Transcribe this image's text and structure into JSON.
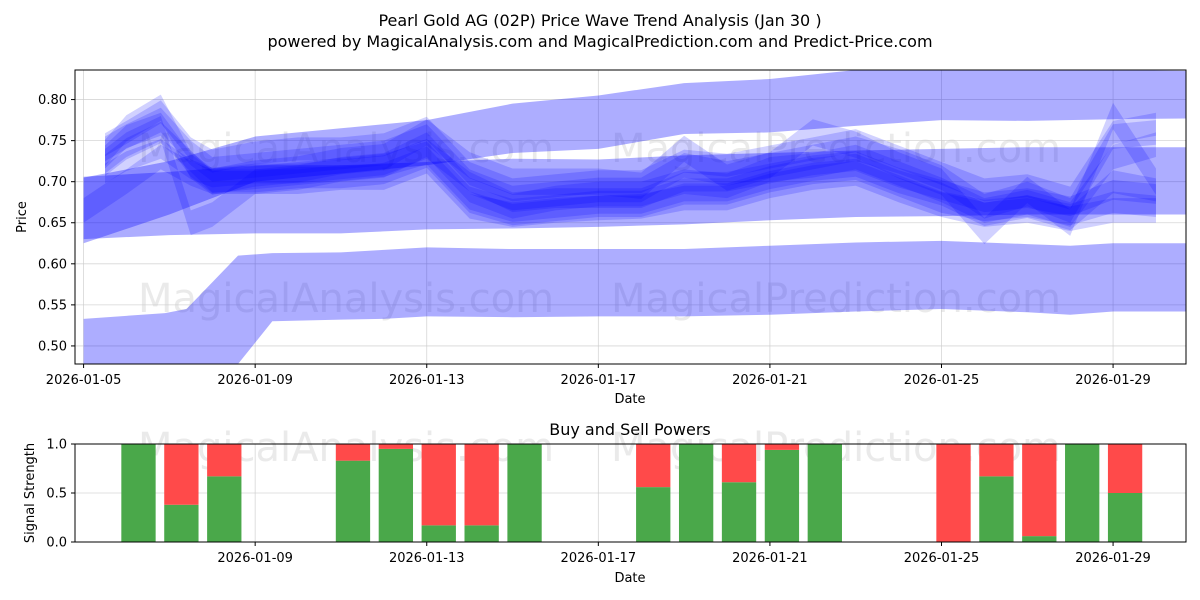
{
  "header": {
    "title": "Pearl Gold AG (02P) Price Wave Trend Analysis (Jan 30 )",
    "subtitle": "powered by MagicalAnalysis.com and MagicalPrediction.com and Predict-Price.com"
  },
  "watermarks": [
    "MagicalAnalysis.com",
    "MagicalPrediction.com"
  ],
  "colors": {
    "band": "#0000ff",
    "buy": "#4aa84a",
    "sell": "#ff4a4a",
    "axis": "#000000",
    "grid": "#cccccc",
    "watermark": "#d9d9d9"
  },
  "chart_data": [
    {
      "type": "area",
      "title": "",
      "xlabel": "Date",
      "ylabel": "Price",
      "x_range": [
        "2026-01-05",
        "2026-01-31"
      ],
      "xlim_days": [
        -0.2,
        25.7
      ],
      "ylim": [
        0.478,
        0.836
      ],
      "yticks": [
        0.5,
        0.55,
        0.6,
        0.65,
        0.7,
        0.75,
        0.8
      ],
      "ytick_labels": [
        "0.50",
        "0.55",
        "0.60",
        "0.65",
        "0.70",
        "0.75",
        "0.80"
      ],
      "xticks": [
        0,
        4,
        8,
        12,
        16,
        20,
        24
      ],
      "xtick_labels": [
        "2026-01-05",
        "2026-01-09",
        "2026-01-13",
        "2026-01-17",
        "2026-01-21",
        "2026-01-25",
        "2026-01-29"
      ],
      "grid": true,
      "series": [
        {
          "name": "band-upper",
          "opacity": 0.32,
          "x": [
            0,
            2,
            4,
            6,
            8,
            10,
            12,
            14,
            16,
            18,
            20,
            22,
            24,
            25.7
          ],
          "upper": [
            0.705,
            0.725,
            0.755,
            0.765,
            0.775,
            0.795,
            0.805,
            0.82,
            0.825,
            0.838,
            0.84,
            0.84,
            0.838,
            0.835
          ],
          "lower": [
            0.625,
            0.66,
            0.7,
            0.71,
            0.72,
            0.735,
            0.74,
            0.758,
            0.76,
            0.768,
            0.775,
            0.774,
            0.776,
            0.777
          ]
        },
        {
          "name": "band-middle",
          "opacity": 0.32,
          "x": [
            0,
            2,
            4,
            6,
            8,
            10,
            12,
            14,
            16,
            18,
            20,
            22,
            24,
            25.7
          ],
          "upper": [
            0.706,
            0.712,
            0.72,
            0.72,
            0.724,
            0.728,
            0.727,
            0.732,
            0.735,
            0.738,
            0.74,
            0.742,
            0.742,
            0.742
          ],
          "lower": [
            0.63,
            0.635,
            0.637,
            0.637,
            0.642,
            0.643,
            0.645,
            0.648,
            0.653,
            0.657,
            0.658,
            0.66,
            0.66,
            0.66
          ]
        },
        {
          "name": "band-lower",
          "opacity": 0.32,
          "x": [
            0,
            1.9,
            2.4,
            3.6,
            4.4,
            6,
            7,
            8,
            10,
            12,
            14,
            16,
            18,
            20,
            22,
            23,
            24,
            25.7
          ],
          "upper": [
            0.533,
            0.54,
            0.545,
            0.61,
            0.613,
            0.614,
            0.617,
            0.62,
            0.618,
            0.618,
            0.618,
            0.622,
            0.626,
            0.628,
            0.624,
            0.622,
            0.625,
            0.625
          ],
          "lower": [
            0.478,
            0.478,
            0.478,
            0.478,
            0.53,
            0.532,
            0.533,
            0.536,
            0.535,
            0.536,
            0.536,
            0.538,
            0.542,
            0.545,
            0.541,
            0.538,
            0.542,
            0.542
          ]
        },
        {
          "name": "wave-1",
          "opacity": 0.18,
          "width": 0.032,
          "x": [
            0.5,
            1,
            1.8,
            2.5,
            3,
            4,
            5,
            6,
            7,
            8,
            9,
            10,
            11,
            12,
            13,
            14,
            15,
            16,
            17,
            18,
            19,
            20,
            21,
            22,
            23,
            24,
            25
          ],
          "y": [
            0.735,
            0.765,
            0.79,
            0.72,
            0.7,
            0.71,
            0.715,
            0.725,
            0.73,
            0.76,
            0.72,
            0.7,
            0.7,
            0.7,
            0.695,
            0.74,
            0.705,
            0.72,
            0.76,
            0.745,
            0.72,
            0.7,
            0.64,
            0.69,
            0.65,
            0.78,
            0.7
          ]
        },
        {
          "name": "wave-2",
          "opacity": 0.18,
          "width": 0.03,
          "x": [
            0.5,
            1,
            1.8,
            2.5,
            3,
            4,
            5,
            6,
            7,
            8,
            9,
            10,
            11,
            12,
            13,
            14,
            15,
            16,
            17,
            18,
            19,
            20,
            21,
            22,
            23,
            24,
            25
          ],
          "y": [
            0.74,
            0.755,
            0.775,
            0.735,
            0.715,
            0.72,
            0.725,
            0.73,
            0.735,
            0.755,
            0.7,
            0.68,
            0.685,
            0.69,
            0.69,
            0.72,
            0.71,
            0.72,
            0.73,
            0.74,
            0.725,
            0.705,
            0.67,
            0.685,
            0.665,
            0.755,
            0.76
          ]
        },
        {
          "name": "wave-3",
          "opacity": 0.18,
          "width": 0.03,
          "x": [
            0.5,
            1,
            1.8,
            2.5,
            3,
            4,
            5,
            6,
            7,
            8,
            9,
            10,
            11,
            12,
            13,
            14,
            15,
            16,
            17,
            18,
            19,
            20,
            21,
            22,
            23,
            24,
            25
          ],
          "y": [
            0.725,
            0.745,
            0.765,
            0.65,
            0.66,
            0.7,
            0.705,
            0.715,
            0.72,
            0.745,
            0.69,
            0.67,
            0.68,
            0.685,
            0.685,
            0.7,
            0.695,
            0.715,
            0.72,
            0.73,
            0.71,
            0.69,
            0.665,
            0.675,
            0.66,
            0.73,
            0.745
          ]
        },
        {
          "name": "wave-4",
          "opacity": 0.18,
          "width": 0.028,
          "x": [
            0.5,
            1,
            1.8,
            2.5,
            3,
            4,
            5,
            6,
            7,
            8,
            9,
            10,
            11,
            12,
            13,
            14,
            15,
            16,
            17,
            18,
            19,
            20,
            21,
            22,
            23,
            24,
            25
          ],
          "y": [
            0.73,
            0.755,
            0.77,
            0.72,
            0.7,
            0.705,
            0.71,
            0.715,
            0.72,
            0.735,
            0.68,
            0.665,
            0.67,
            0.675,
            0.675,
            0.69,
            0.69,
            0.705,
            0.715,
            0.72,
            0.7,
            0.685,
            0.66,
            0.67,
            0.655,
            0.7,
            0.69
          ]
        },
        {
          "name": "wave-5",
          "opacity": 0.18,
          "width": 0.026,
          "x": [
            0.5,
            1,
            1.8,
            2.5,
            3,
            4,
            5,
            6,
            7,
            8,
            9,
            10,
            11,
            12,
            13,
            14,
            15,
            16,
            17,
            18,
            19,
            20,
            21,
            22,
            23,
            24,
            25
          ],
          "y": [
            0.72,
            0.74,
            0.76,
            0.725,
            0.7,
            0.7,
            0.705,
            0.705,
            0.71,
            0.73,
            0.675,
            0.66,
            0.665,
            0.67,
            0.67,
            0.685,
            0.685,
            0.7,
            0.71,
            0.715,
            0.695,
            0.675,
            0.665,
            0.67,
            0.66,
            0.675,
            0.67
          ]
        },
        {
          "name": "wave-6",
          "opacity": 0.18,
          "width": 0.03,
          "x": [
            0,
            1,
            1.8,
            2.5,
            3,
            4,
            5,
            6,
            7,
            8,
            9,
            10,
            11,
            12,
            13,
            14,
            15,
            16,
            17,
            18,
            19,
            20,
            21,
            22,
            23,
            24,
            25
          ],
          "y": [
            0.665,
            0.7,
            0.73,
            0.71,
            0.7,
            0.7,
            0.7,
            0.705,
            0.705,
            0.725,
            0.67,
            0.66,
            0.665,
            0.668,
            0.67,
            0.68,
            0.68,
            0.695,
            0.705,
            0.71,
            0.69,
            0.672,
            0.66,
            0.665,
            0.655,
            0.665,
            0.665
          ]
        },
        {
          "name": "wave-7",
          "opacity": 0.18,
          "width": 0.028,
          "x": [
            0.5,
            1,
            1.8,
            2.5,
            3,
            4,
            5,
            6,
            7,
            8,
            9,
            10,
            11,
            12,
            13,
            14,
            15,
            16,
            17,
            18,
            19,
            20,
            21,
            22,
            23,
            24,
            25
          ],
          "y": [
            0.745,
            0.76,
            0.785,
            0.74,
            0.725,
            0.735,
            0.74,
            0.74,
            0.745,
            0.765,
            0.71,
            0.69,
            0.695,
            0.7,
            0.7,
            0.725,
            0.72,
            0.73,
            0.74,
            0.75,
            0.73,
            0.71,
            0.69,
            0.695,
            0.68,
            0.76,
            0.77
          ]
        },
        {
          "name": "wave-8",
          "opacity": 0.18,
          "width": 0.024,
          "x": [
            0.5,
            1,
            1.8,
            2.5,
            3,
            4,
            5,
            6,
            7,
            8,
            9,
            10,
            11,
            12,
            13,
            14,
            15,
            16,
            17,
            18,
            19,
            20,
            21,
            22,
            23,
            24,
            25
          ],
          "y": [
            0.71,
            0.725,
            0.74,
            0.715,
            0.705,
            0.71,
            0.71,
            0.715,
            0.72,
            0.74,
            0.7,
            0.675,
            0.68,
            0.68,
            0.68,
            0.7,
            0.7,
            0.71,
            0.72,
            0.725,
            0.705,
            0.69,
            0.675,
            0.68,
            0.67,
            0.69,
            0.685
          ]
        }
      ]
    },
    {
      "type": "bar",
      "title": "Buy and Sell Powers",
      "xlabel": "Date",
      "ylabel": "Signal Strength",
      "ylim": [
        0,
        1
      ],
      "xlim_days": [
        -0.2,
        25.7
      ],
      "yticks": [
        0,
        0.5,
        1
      ],
      "ytick_labels": [
        "0.0",
        "0.5",
        "1.0"
      ],
      "xticks": [
        4,
        8,
        12,
        16,
        20,
        24
      ],
      "xtick_labels": [
        "2026-01-09",
        "2026-01-13",
        "2026-01-17",
        "2026-01-21",
        "2026-01-25",
        "2026-01-29"
      ],
      "categories": [
        "2026-01-07",
        "2026-01-08",
        "2026-01-09",
        "2026-01-12",
        "2026-01-13",
        "2026-01-14",
        "2026-01-15",
        "2026-01-16",
        "2026-01-19",
        "2026-01-20",
        "2026-01-21",
        "2026-01-22",
        "2026-01-23",
        "2026-01-26",
        "2026-01-27",
        "2026-01-28",
        "2026-01-29",
        "2026-01-30"
      ],
      "day_index": [
        1.28,
        2.28,
        3.28,
        6.28,
        7.28,
        8.28,
        9.28,
        10.28,
        13.28,
        14.28,
        15.28,
        16.28,
        17.28,
        20.28,
        21.28,
        22.28,
        23.28,
        24.28
      ],
      "series": [
        {
          "name": "Buy",
          "values": [
            1.0,
            0.38,
            0.67,
            0.83,
            0.95,
            0.17,
            0.17,
            1.0,
            0.56,
            1.0,
            0.61,
            0.94,
            1.0,
            0.0,
            0.67,
            0.06,
            1.0,
            0.5
          ]
        },
        {
          "name": "Sell",
          "values": [
            0.0,
            0.62,
            0.33,
            0.17,
            0.05,
            0.83,
            0.83,
            0.0,
            0.44,
            0.0,
            0.39,
            0.06,
            0.0,
            1.0,
            0.33,
            0.94,
            0.0,
            0.5
          ]
        }
      ]
    }
  ]
}
